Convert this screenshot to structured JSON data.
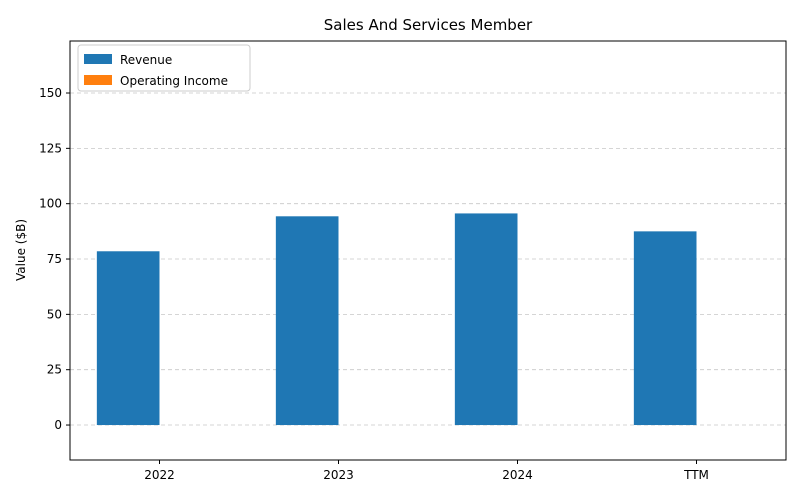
{
  "chart_data": {
    "type": "bar",
    "title": "Sales And Services Member",
    "xlabel": "",
    "ylabel": "Value ($B)",
    "categories": [
      "2022",
      "2023",
      "2024",
      "TTM"
    ],
    "series": [
      {
        "name": "Revenue",
        "color": "#1f77b4",
        "values": [
          78.5,
          94.3,
          95.6,
          87.5
        ]
      },
      {
        "name": "Operating Income",
        "color": "#ff7f0e",
        "values": [
          0,
          0,
          0,
          0
        ]
      }
    ],
    "ylim": [
      -15.8,
      173.5
    ],
    "yticks": [
      0,
      25,
      50,
      75,
      100,
      125,
      150
    ],
    "grid": "y-dashed",
    "legend_position": "top-left"
  }
}
